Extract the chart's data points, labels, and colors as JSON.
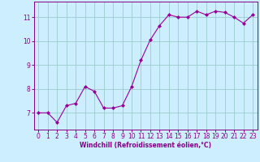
{
  "x": [
    0,
    1,
    2,
    3,
    4,
    5,
    6,
    7,
    8,
    9,
    10,
    11,
    12,
    13,
    14,
    15,
    16,
    17,
    18,
    19,
    20,
    21,
    22,
    23
  ],
  "y": [
    7.0,
    7.0,
    6.6,
    7.3,
    7.4,
    8.1,
    7.9,
    7.2,
    7.2,
    7.3,
    8.1,
    9.2,
    10.05,
    10.65,
    11.1,
    11.0,
    11.0,
    11.25,
    11.1,
    11.25,
    11.2,
    11.0,
    10.75,
    11.1
  ],
  "line_color": "#990099",
  "marker": "D",
  "marker_size": 2.0,
  "bg_color": "#cceeff",
  "grid_color": "#99cccc",
  "xlabel": "Windchill (Refroidissement éolien,°C)",
  "xlabel_fontsize": 5.5,
  "xlim": [
    -0.5,
    23.5
  ],
  "ylim": [
    6.3,
    11.65
  ],
  "yticks": [
    7,
    8,
    9,
    10,
    11
  ],
  "xticks": [
    0,
    1,
    2,
    3,
    4,
    5,
    6,
    7,
    8,
    9,
    10,
    11,
    12,
    13,
    14,
    15,
    16,
    17,
    18,
    19,
    20,
    21,
    22,
    23
  ],
  "tick_fontsize": 5.5,
  "axis_color": "#880088"
}
